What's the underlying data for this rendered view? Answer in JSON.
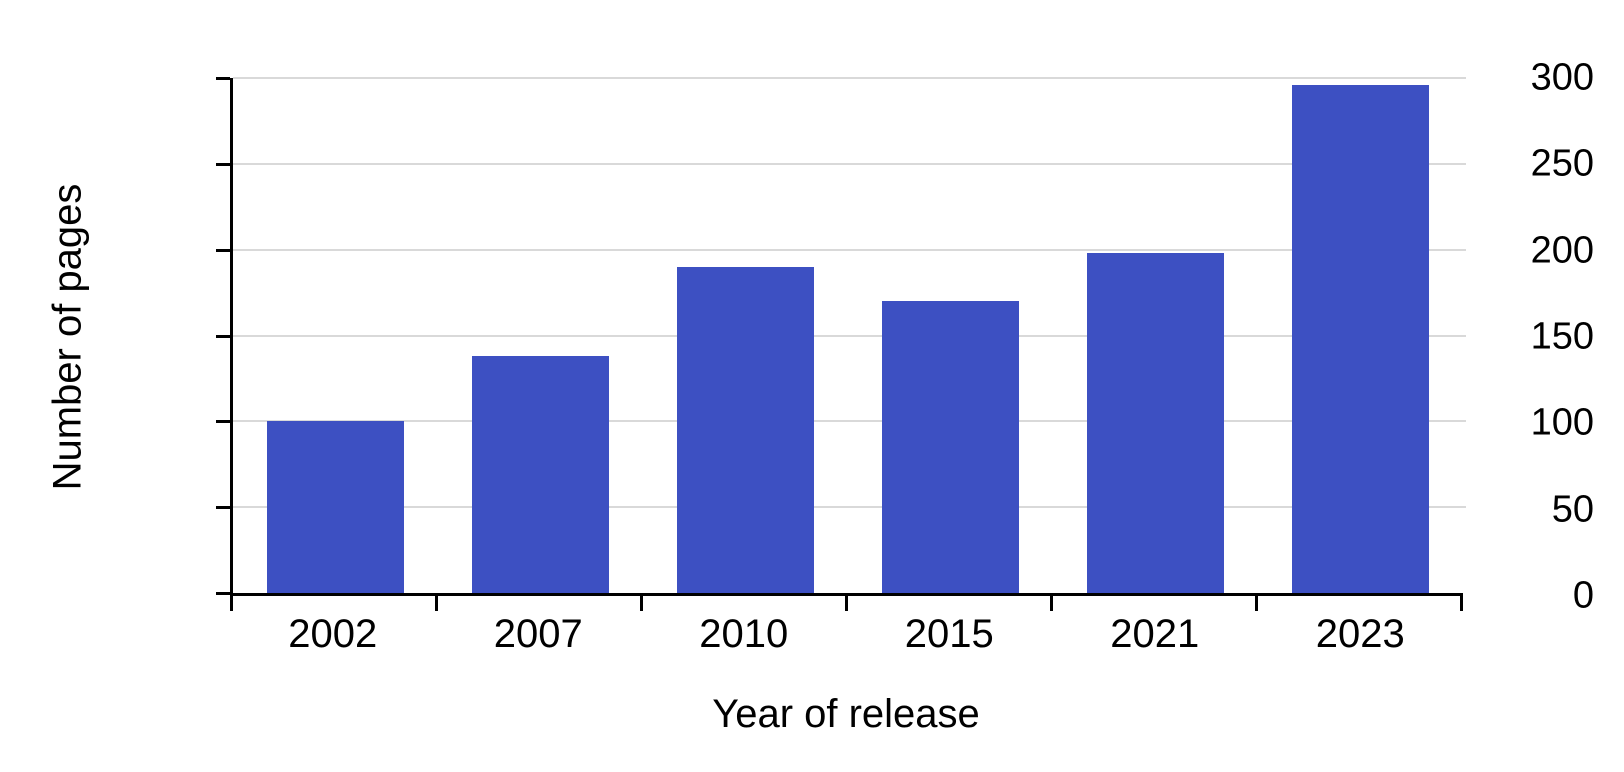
{
  "chart_data": {
    "type": "bar",
    "title": "",
    "xlabel": "Year of release",
    "ylabel": "Number of pages",
    "categories": [
      "2002",
      "2007",
      "2010",
      "2015",
      "2021",
      "2023"
    ],
    "values": [
      100,
      138,
      190,
      170,
      198,
      296
    ],
    "ylim": [
      0,
      300
    ],
    "yticks": [
      0,
      50,
      100,
      150,
      200,
      250,
      300
    ],
    "grid": "horizontal-only",
    "legend_position": "none",
    "colors": {
      "bar": "#3D50C2",
      "gridline": "#D9D9D9",
      "axis": "#000000",
      "text": "#000000",
      "background": "#FFFFFF"
    }
  }
}
